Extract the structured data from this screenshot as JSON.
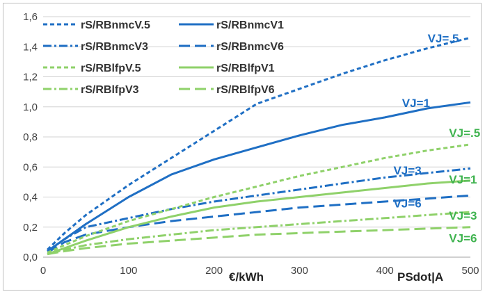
{
  "chart_data": {
    "type": "line",
    "xlim": [
      0,
      500
    ],
    "ylim": [
      0,
      1.6
    ],
    "x_ticks": [
      "0",
      "100",
      "200",
      "300",
      "400",
      "500"
    ],
    "y_ticks": [
      "0,0",
      "0,2",
      "0,4",
      "0,6",
      "0,8",
      "1,0",
      "1,2",
      "1,4",
      "1,6"
    ],
    "grid": "horizontal",
    "legend_position": "top-left",
    "axis_tags": [
      "€/kWh",
      "PSdot|A"
    ],
    "colors": {
      "nmc": "#1f6fc4",
      "lfp": "#8fd16a"
    },
    "series": [
      {
        "name": "rS/RBnmcV.5",
        "color": "#1f6fc4",
        "dash": "short-dash",
        "x": [
          5,
          25,
          50,
          100,
          150,
          200,
          250,
          300,
          350,
          400,
          450,
          500
        ],
        "y": [
          0.05,
          0.16,
          0.28,
          0.48,
          0.66,
          0.84,
          1.02,
          1.12,
          1.22,
          1.31,
          1.39,
          1.46
        ]
      },
      {
        "name": "rS/RBnmcV1",
        "color": "#1f6fc4",
        "dash": "solid",
        "x": [
          5,
          25,
          50,
          100,
          150,
          200,
          250,
          300,
          350,
          400,
          450,
          500
        ],
        "y": [
          0.04,
          0.12,
          0.22,
          0.4,
          0.55,
          0.65,
          0.73,
          0.81,
          0.88,
          0.93,
          0.99,
          1.03
        ]
      },
      {
        "name": "rS/RBnmcV3",
        "color": "#1f6fc4",
        "dash": "dash-dot",
        "x": [
          5,
          25,
          50,
          100,
          150,
          200,
          250,
          300,
          350,
          400,
          450,
          500
        ],
        "y": [
          0.04,
          0.12,
          0.2,
          0.26,
          0.32,
          0.37,
          0.41,
          0.45,
          0.49,
          0.53,
          0.56,
          0.59
        ]
      },
      {
        "name": "rS/RBnmcV6",
        "color": "#1f6fc4",
        "dash": "long-dash",
        "x": [
          5,
          25,
          50,
          100,
          150,
          200,
          250,
          300,
          350,
          400,
          450,
          500
        ],
        "y": [
          0.03,
          0.1,
          0.15,
          0.2,
          0.24,
          0.27,
          0.3,
          0.33,
          0.35,
          0.37,
          0.39,
          0.41
        ]
      },
      {
        "name": "rS/RBlfpV.5",
        "color": "#8fd16a",
        "dash": "short-dash",
        "x": [
          5,
          25,
          50,
          100,
          150,
          200,
          250,
          300,
          350,
          400,
          450,
          500
        ],
        "y": [
          0.03,
          0.08,
          0.14,
          0.24,
          0.32,
          0.4,
          0.47,
          0.54,
          0.6,
          0.66,
          0.71,
          0.75
        ]
      },
      {
        "name": "rS/RBlfpV1",
        "color": "#8fd16a",
        "dash": "solid",
        "x": [
          5,
          25,
          50,
          100,
          150,
          200,
          250,
          300,
          350,
          400,
          450,
          500
        ],
        "y": [
          0.02,
          0.06,
          0.11,
          0.2,
          0.27,
          0.33,
          0.37,
          0.4,
          0.43,
          0.46,
          0.49,
          0.51
        ]
      },
      {
        "name": "rS/RBlfpV3",
        "color": "#8fd16a",
        "dash": "dash-dot",
        "x": [
          5,
          25,
          50,
          100,
          150,
          200,
          250,
          300,
          350,
          400,
          450,
          500
        ],
        "y": [
          0.02,
          0.05,
          0.08,
          0.12,
          0.15,
          0.18,
          0.2,
          0.22,
          0.24,
          0.26,
          0.28,
          0.3
        ]
      },
      {
        "name": "rS/RBlfpV6",
        "color": "#8fd16a",
        "dash": "long-dash",
        "x": [
          5,
          25,
          50,
          100,
          150,
          200,
          250,
          300,
          350,
          400,
          450,
          500
        ],
        "y": [
          0.02,
          0.04,
          0.06,
          0.09,
          0.11,
          0.13,
          0.15,
          0.16,
          0.17,
          0.18,
          0.19,
          0.2
        ]
      }
    ],
    "annotations": [
      {
        "text": "VJ=.5",
        "group": "nmc",
        "x": 450,
        "y": 1.43
      },
      {
        "text": "VJ=1",
        "group": "nmc",
        "x": 420,
        "y": 1.0
      },
      {
        "text": "VJ=3",
        "group": "nmc",
        "x": 410,
        "y": 0.55
      },
      {
        "text": "VJ=6",
        "group": "nmc",
        "x": 410,
        "y": 0.33
      },
      {
        "text": "VJ=.5",
        "group": "lfp",
        "x": 475,
        "y": 0.8
      },
      {
        "text": "VJ=1",
        "group": "lfp",
        "x": 475,
        "y": 0.49
      },
      {
        "text": "VJ=3",
        "group": "lfp",
        "x": 475,
        "y": 0.25
      },
      {
        "text": "VJ=6",
        "group": "lfp",
        "x": 475,
        "y": 0.1
      }
    ]
  }
}
